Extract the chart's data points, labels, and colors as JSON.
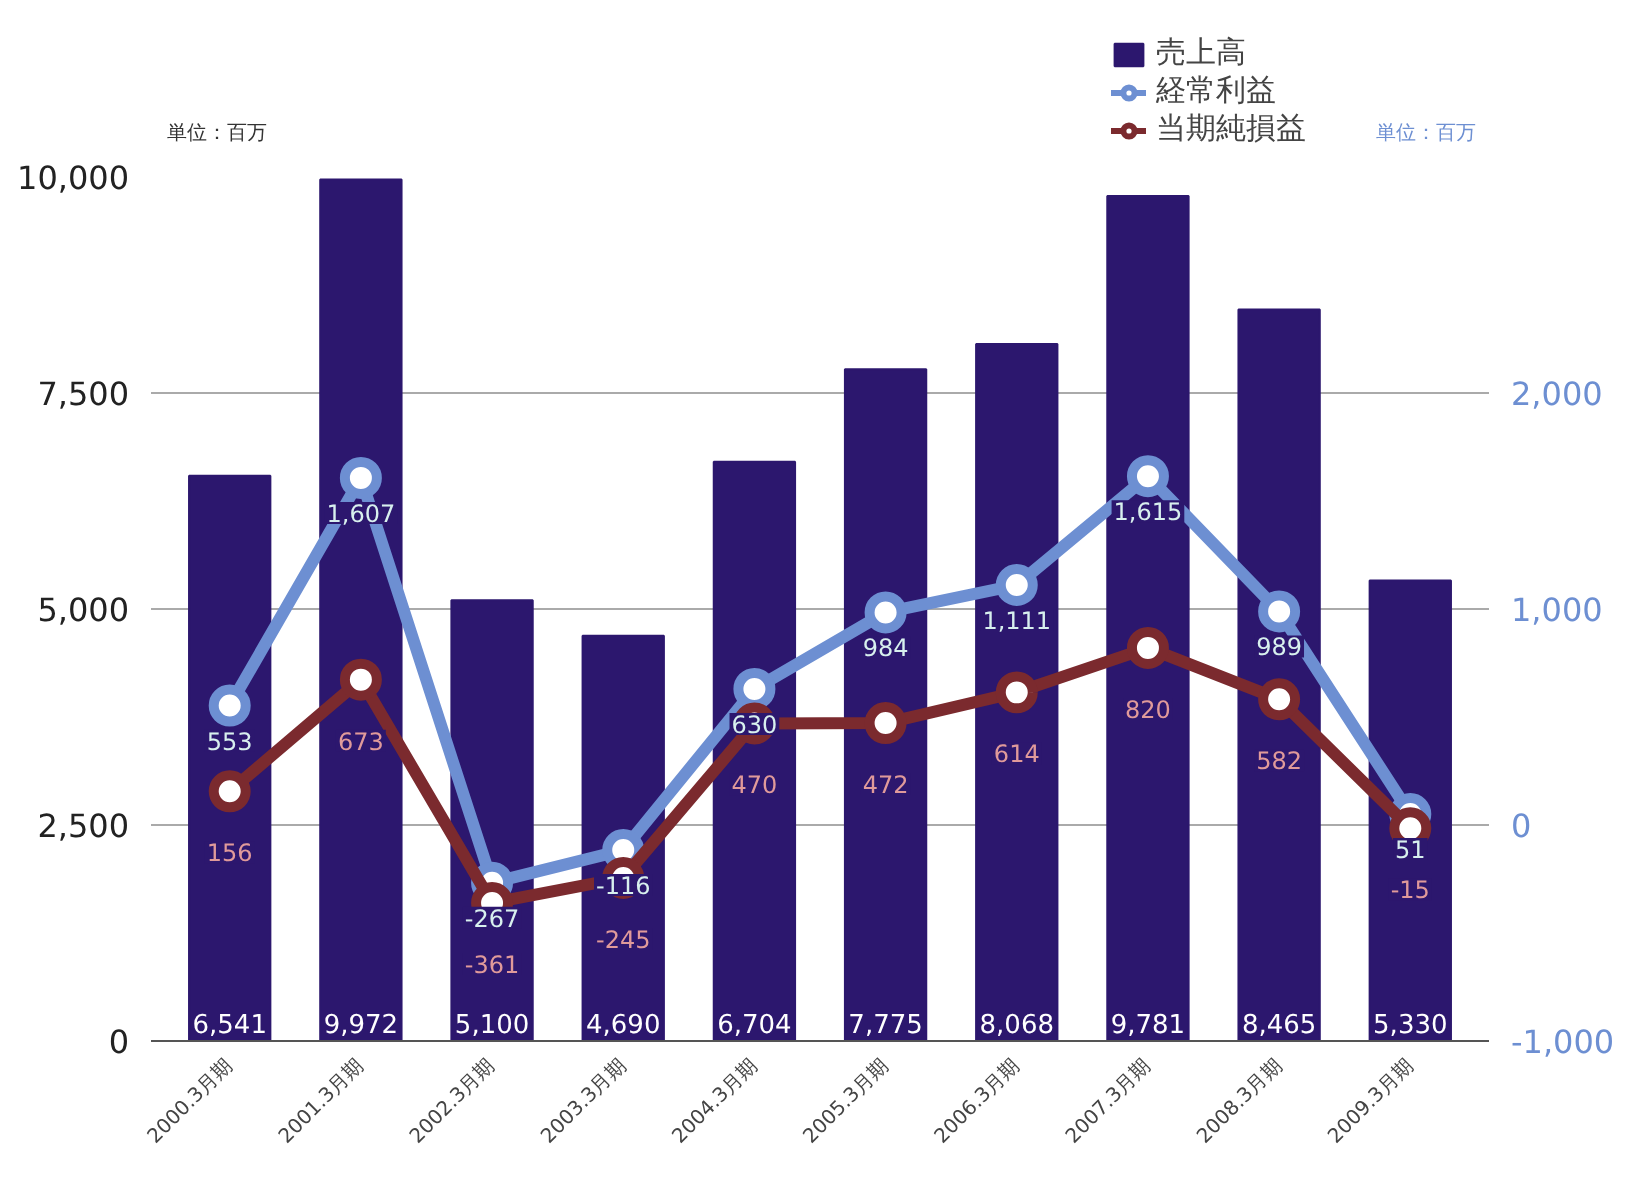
{
  "chart_data": {
    "type": "bar",
    "categories": [
      "2000.3月期",
      "2001.3月期",
      "2002.3月期",
      "2003.3月期",
      "2004.3月期",
      "2005.3月期",
      "2006.3月期",
      "2007.3月期",
      "2008.3月期",
      "2009.3月期"
    ],
    "series": [
      {
        "name": "売上高",
        "color": "#2c176e",
        "values": [
          6541,
          9972,
          5100,
          4690,
          6704,
          7775,
          8068,
          9781,
          8465,
          5330
        ],
        "value_labels": [
          "6,541",
          "9,972",
          "5,100",
          "4,690",
          "6,704",
          "7,775",
          "8,068",
          "9,781",
          "8,465",
          "5,330"
        ]
      },
      {
        "name": "経常利益",
        "type": "line",
        "axis": "y2",
        "color": "#6d8fd2",
        "values": [
          553,
          1607,
          -267,
          -116,
          630,
          984,
          1111,
          1615,
          989,
          51
        ],
        "value_labels": [
          "553",
          "1,607",
          "-267",
          "-116",
          "630",
          "984",
          "1,111",
          "1,615",
          "989",
          "51"
        ]
      },
      {
        "name": "当期純損益",
        "type": "line",
        "axis": "y2",
        "color": "#7b2a2e",
        "values": [
          156,
          673,
          -361,
          -245,
          470,
          472,
          614,
          820,
          582,
          -15
        ],
        "value_labels": [
          "156",
          "673",
          "-361",
          "-245",
          "470",
          "472",
          "614",
          "820",
          "582",
          "-15"
        ]
      }
    ],
    "ylabel": "単位：百万",
    "y2label": "単位：百万",
    "ylim": [
      0,
      10000
    ],
    "yticks": [
      {
        "value": 0,
        "label": "0"
      },
      {
        "value": 2500,
        "label": "2,500"
      },
      {
        "value": 5000,
        "label": "5,000"
      },
      {
        "value": 7500,
        "label": "7,500"
      },
      {
        "value": 10000,
        "label": "10,000"
      }
    ],
    "y2lim": [
      -1000,
      3000
    ],
    "y2ticks": [
      {
        "value": -1000,
        "label": "-1,000"
      },
      {
        "value": 0,
        "label": "0"
      },
      {
        "value": 1000,
        "label": "1,000"
      },
      {
        "value": 2000,
        "label": "2,000"
      }
    ],
    "grid": "y",
    "legend": "top right",
    "marker": "circle",
    "line_style": "solid"
  }
}
